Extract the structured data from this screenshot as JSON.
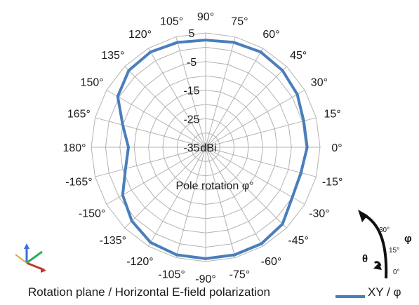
{
  "chart_data": {
    "type": "polar-line",
    "unit_label": "dBi",
    "angle_axis_title": "Pole rotation φ°",
    "angle_ticks": [
      {
        "deg": 90,
        "label": "90°"
      },
      {
        "deg": 75,
        "label": "75°"
      },
      {
        "deg": 60,
        "label": "60°"
      },
      {
        "deg": 45,
        "label": "45°"
      },
      {
        "deg": 30,
        "label": "30°"
      },
      {
        "deg": 15,
        "label": "15°"
      },
      {
        "deg": 0,
        "label": "0°"
      },
      {
        "deg": -15,
        "label": "-15°"
      },
      {
        "deg": -30,
        "label": "-30°"
      },
      {
        "deg": -45,
        "label": "-45°"
      },
      {
        "deg": -60,
        "label": "-60°"
      },
      {
        "deg": -75,
        "label": "-75°"
      },
      {
        "deg": -90,
        "label": "-90°"
      },
      {
        "deg": -105,
        "label": "-105°"
      },
      {
        "deg": -120,
        "label": "-120°"
      },
      {
        "deg": -135,
        "label": "-135°"
      },
      {
        "deg": -150,
        "label": "-150°"
      },
      {
        "deg": -165,
        "label": "-165°"
      },
      {
        "deg": 180,
        "label": "180°"
      },
      {
        "deg": 165,
        "label": "165°"
      },
      {
        "deg": 150,
        "label": "150°"
      },
      {
        "deg": 135,
        "label": "135°"
      },
      {
        "deg": 120,
        "label": "120°"
      },
      {
        "deg": 105,
        "label": "105°"
      }
    ],
    "radial_ticks": [
      "5",
      "-5",
      "-15",
      "-25",
      "-35"
    ],
    "r_range": [
      -35,
      5
    ],
    "series": [
      {
        "name": "XY  / φ",
        "color": "#4a7ebb",
        "points": [
          {
            "angle": 0,
            "value": 0.5
          },
          {
            "angle": 15,
            "value": 0.5
          },
          {
            "angle": 30,
            "value": 2.0
          },
          {
            "angle": 45,
            "value": 3.0
          },
          {
            "angle": 60,
            "value": 3.5
          },
          {
            "angle": 75,
            "value": 3.0
          },
          {
            "angle": 90,
            "value": 2.5
          },
          {
            "angle": 105,
            "value": 3.0
          },
          {
            "angle": 120,
            "value": 3.5
          },
          {
            "angle": 135,
            "value": 3.0
          },
          {
            "angle": 150,
            "value": 0.5
          },
          {
            "angle": 165,
            "value": -5.0
          },
          {
            "angle": 180,
            "value": -8.0
          },
          {
            "angle": -165,
            "value": -6.0
          },
          {
            "angle": -150,
            "value": -1.5
          },
          {
            "angle": -135,
            "value": 1.5
          },
          {
            "angle": -120,
            "value": 3.5
          },
          {
            "angle": -105,
            "value": 4.0
          },
          {
            "angle": -90,
            "value": 4.0
          },
          {
            "angle": -75,
            "value": 4.0
          },
          {
            "angle": -60,
            "value": 4.0
          },
          {
            "angle": -45,
            "value": 3.0
          },
          {
            "angle": -30,
            "value": 0.0
          },
          {
            "angle": -15,
            "value": -0.5
          }
        ]
      }
    ],
    "grid": true,
    "legend": "bottom-right"
  },
  "captions": {
    "plane": "Rotation plane / Horizontal E-field polarization",
    "legend_label": "XY  / φ"
  },
  "inset": {
    "theta_label": "θ",
    "phi_label": "φ",
    "ticks": [
      "30°",
      "15°",
      "0°"
    ]
  }
}
